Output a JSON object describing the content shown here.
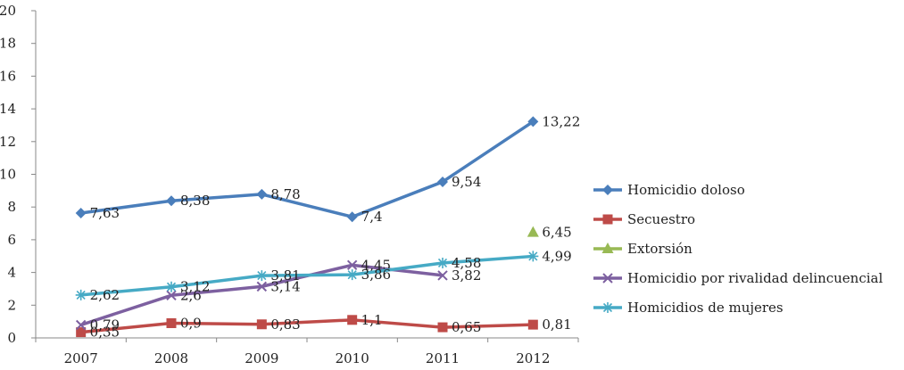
{
  "chart_data": {
    "type": "line",
    "title": "",
    "xlabel": "",
    "ylabel": "",
    "categories": [
      "2007",
      "2008",
      "2009",
      "2010",
      "2011",
      "2012"
    ],
    "ylim": [
      0,
      20
    ],
    "yticks": [
      "0",
      "2",
      "4",
      "6",
      "8",
      "10",
      "12",
      "14",
      "16",
      "18",
      "20"
    ],
    "grid": false,
    "legend_position": "right",
    "series": [
      {
        "name": "Homicidio doloso",
        "color": "#4a7ebb",
        "marker": "diamond",
        "values": [
          7.63,
          8.38,
          8.78,
          7.4,
          9.54,
          13.22
        ],
        "labels": [
          "7,63",
          "8,38",
          "8,78",
          "7,4",
          "9,54",
          "13,22"
        ]
      },
      {
        "name": "Secuestro",
        "color": "#be4b48",
        "marker": "square",
        "values": [
          0.35,
          0.9,
          0.83,
          1.1,
          0.65,
          0.81
        ],
        "labels": [
          "0,35",
          "0,9",
          "0,83",
          "1,1",
          "0,65",
          "0,81"
        ]
      },
      {
        "name": "Extorsión",
        "color": "#98b954",
        "marker": "triangle",
        "values": [
          null,
          null,
          null,
          null,
          null,
          6.45
        ],
        "labels": [
          "",
          "",
          "",
          "",
          "",
          "6,45"
        ]
      },
      {
        "name": "Homicidio por rivalidad delincuencial",
        "color": "#7d60a0",
        "marker": "x",
        "values": [
          0.79,
          2.6,
          3.14,
          4.45,
          3.82,
          null
        ],
        "labels": [
          "0,79",
          "2,6",
          "3,14",
          "4,45",
          "3,82",
          ""
        ]
      },
      {
        "name": "Homicidios de mujeres",
        "color": "#46aac5",
        "marker": "star",
        "values": [
          2.62,
          3.12,
          3.81,
          3.86,
          4.58,
          4.99
        ],
        "labels": [
          "2,62",
          "3,12",
          "3,81",
          "3,86",
          "4,58",
          "4,99"
        ]
      }
    ]
  }
}
